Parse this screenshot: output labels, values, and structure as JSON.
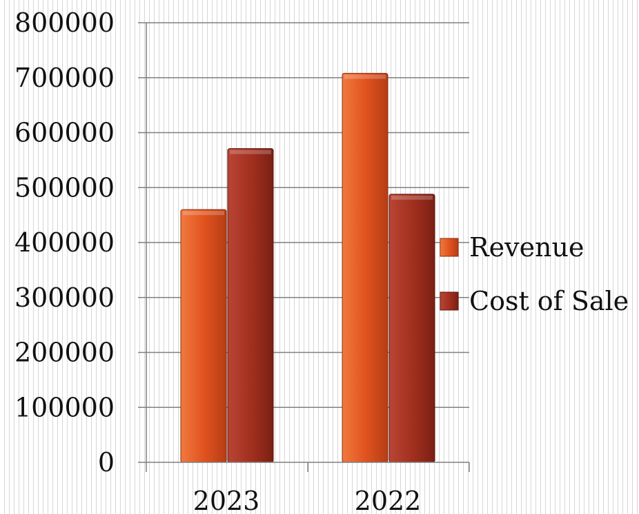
{
  "chart_data": {
    "type": "bar",
    "categories": [
      "2023",
      "2022"
    ],
    "series": [
      {
        "name": "Revenue",
        "values": [
          460000,
          708000
        ],
        "color": "#e2531f"
      },
      {
        "name": "Cost of Sale",
        "values": [
          571000,
          488000
        ],
        "color": "#a3301f"
      }
    ],
    "ylim": [
      0,
      800000
    ],
    "yticks": [
      "0",
      "100000",
      "200000",
      "300000",
      "400000",
      "500000",
      "600000",
      "700000",
      "800000"
    ],
    "grid": true,
    "legend": "right"
  }
}
